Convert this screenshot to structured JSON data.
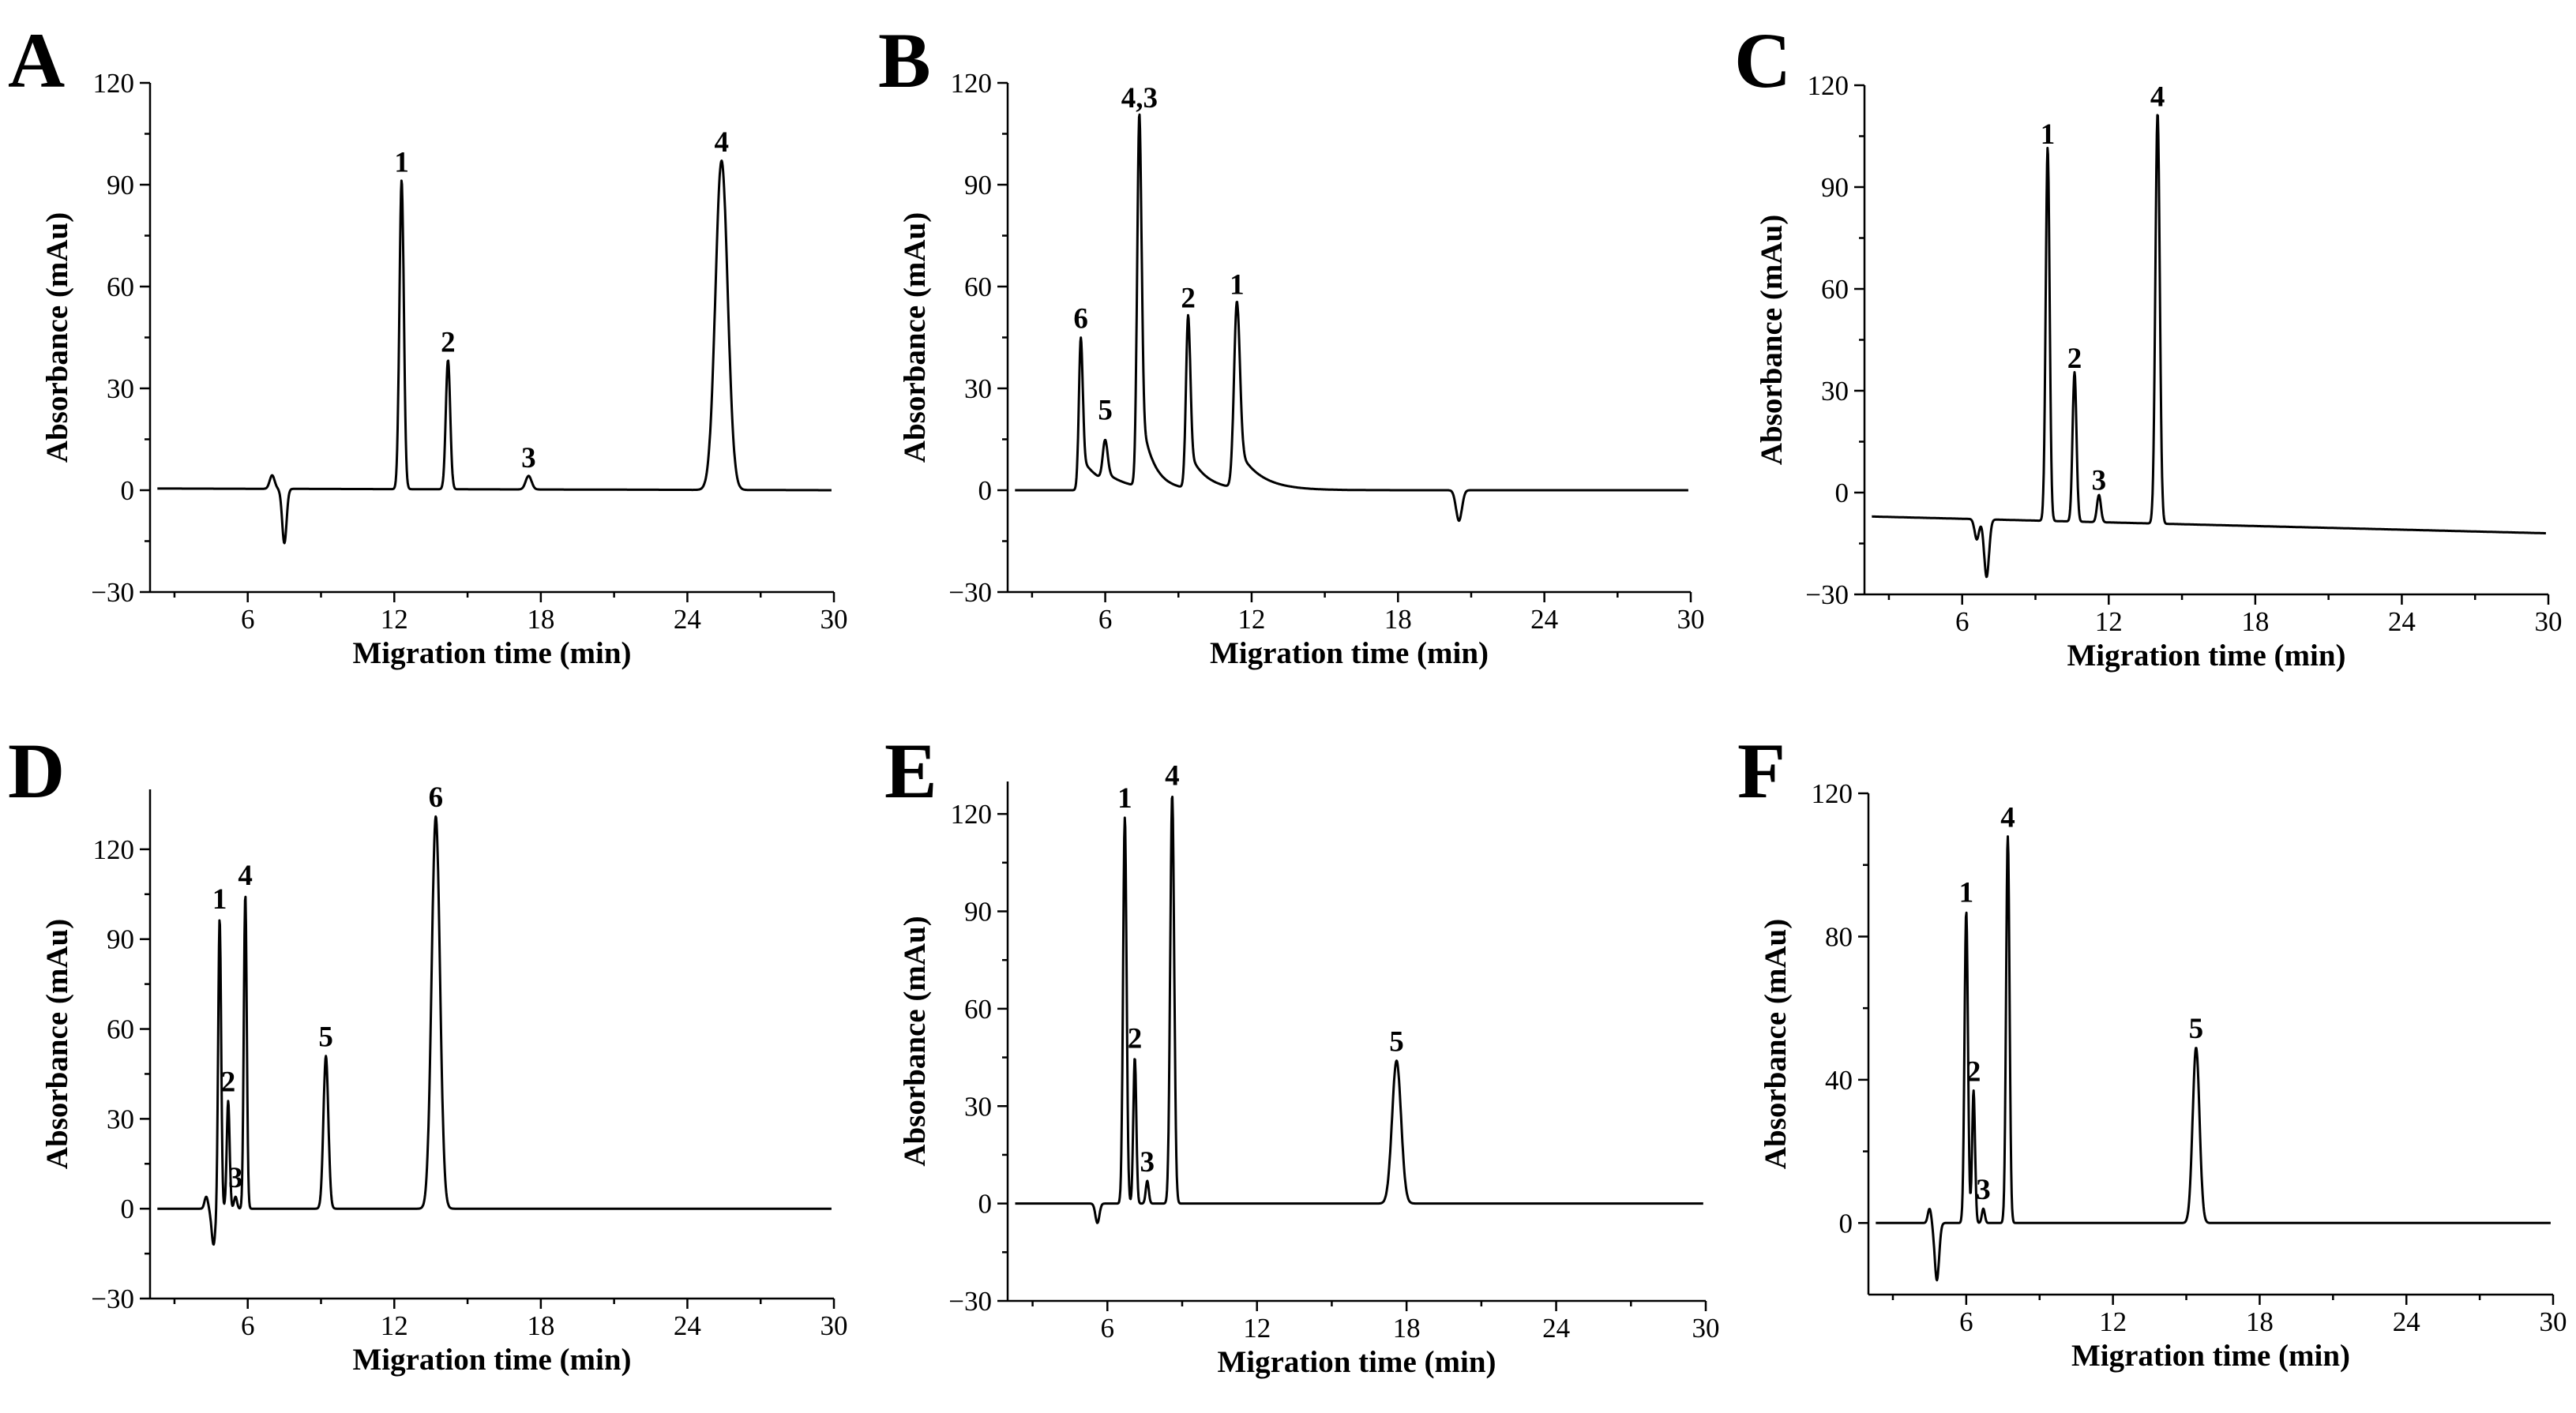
{
  "chart_data": [
    {
      "panel": "A",
      "type": "line",
      "xlabel": "Migration time (min)",
      "ylabel": "Absorbance (mAu)",
      "xlim": [
        2,
        30
      ],
      "ylim": [
        -30,
        120
      ],
      "xticks": [
        6,
        12,
        18,
        24,
        30
      ],
      "yticks": [
        -30,
        0,
        30,
        60,
        90,
        120
      ],
      "baseline": [
        0.5,
        0
      ],
      "features": [
        {
          "t": 7.0,
          "h": 4,
          "w": 0.1
        },
        {
          "t": 7.5,
          "h": -16,
          "w": 0.09
        },
        {
          "t": 12.3,
          "h": 91,
          "w": 0.09
        },
        {
          "t": 14.2,
          "h": 38,
          "w": 0.09
        },
        {
          "t": 17.5,
          "h": 4,
          "w": 0.12
        },
        {
          "t": 25.4,
          "h": 97,
          "w": 0.25
        }
      ],
      "peaks": [
        {
          "label": "1",
          "t": 12.3,
          "h": 91
        },
        {
          "label": "2",
          "t": 14.2,
          "h": 38
        },
        {
          "label": "3",
          "t": 17.5,
          "h": 4
        },
        {
          "label": "4",
          "t": 25.4,
          "h": 97
        }
      ]
    },
    {
      "panel": "B",
      "type": "line",
      "xlabel": "Migration time (min)",
      "ylabel": "Absorbance (mAu)",
      "xlim": [
        2,
        30
      ],
      "ylim": [
        -30,
        120
      ],
      "xticks": [
        6,
        12,
        18,
        24,
        30
      ],
      "yticks": [
        -30,
        0,
        30,
        60,
        90,
        120
      ],
      "baseline": [
        0,
        0
      ],
      "features": [
        {
          "t": 5.0,
          "h": 45,
          "w": 0.08,
          "tail": 0.8
        },
        {
          "t": 6.0,
          "h": 12,
          "w": 0.1,
          "tail": 1.0
        },
        {
          "t": 7.4,
          "h": 110,
          "w": 0.09,
          "tail": 0.5
        },
        {
          "t": 9.4,
          "h": 51,
          "w": 0.09,
          "tail": 0.7
        },
        {
          "t": 11.4,
          "h": 55,
          "w": 0.12,
          "tail": 0.9
        },
        {
          "t": 20.5,
          "h": -9,
          "w": 0.12
        }
      ],
      "peaks": [
        {
          "label": "6",
          "t": 5.0,
          "h": 45
        },
        {
          "label": "5",
          "t": 6.0,
          "h": 18
        },
        {
          "label": "4,3",
          "t": 7.4,
          "h": 110
        },
        {
          "label": "2",
          "t": 9.4,
          "h": 51
        },
        {
          "label": "1",
          "t": 11.4,
          "h": 55
        }
      ]
    },
    {
      "panel": "C",
      "type": "line",
      "xlabel": "Migration time (min)",
      "ylabel": "Absorbance (mAu)",
      "xlim": [
        2,
        30
      ],
      "ylim": [
        -30,
        120
      ],
      "xticks": [
        6,
        12,
        18,
        24,
        30
      ],
      "yticks": [
        -30,
        0,
        30,
        60,
        90,
        120
      ],
      "baseline": [
        -7,
        -12
      ],
      "features": [
        {
          "t": 6.6,
          "h": -6,
          "w": 0.09
        },
        {
          "t": 7.0,
          "h": -17,
          "w": 0.1
        },
        {
          "t": 9.5,
          "h": 110,
          "w": 0.08
        },
        {
          "t": 10.6,
          "h": 44,
          "w": 0.08
        },
        {
          "t": 11.6,
          "h": 8,
          "w": 0.08
        },
        {
          "t": 14.0,
          "h": 121,
          "w": 0.09
        }
      ],
      "peaks": [
        {
          "label": "1",
          "t": 9.5,
          "h": 100
        },
        {
          "label": "2",
          "t": 10.6,
          "h": 34
        },
        {
          "label": "3",
          "t": 11.6,
          "h": -2
        },
        {
          "label": "4",
          "t": 14.0,
          "h": 111
        }
      ]
    },
    {
      "panel": "D",
      "type": "line",
      "xlabel": "Migration time (min)",
      "ylabel": "Absorbance (mAu)",
      "xlim": [
        2,
        30
      ],
      "ylim": [
        -30,
        140
      ],
      "xticks": [
        6,
        12,
        18,
        24,
        30
      ],
      "yticks": [
        -30,
        0,
        30,
        60,
        90,
        120
      ],
      "baseline": [
        0,
        0
      ],
      "features": [
        {
          "t": 4.3,
          "h": 4,
          "w": 0.07
        },
        {
          "t": 4.6,
          "h": -12,
          "w": 0.08
        },
        {
          "t": 4.85,
          "h": 97,
          "w": 0.06
        },
        {
          "t": 5.2,
          "h": 36,
          "w": 0.06
        },
        {
          "t": 5.5,
          "h": 4,
          "w": 0.06
        },
        {
          "t": 5.9,
          "h": 105,
          "w": 0.06
        },
        {
          "t": 9.2,
          "h": 51,
          "w": 0.1
        },
        {
          "t": 13.7,
          "h": 131,
          "w": 0.17
        }
      ],
      "peaks": [
        {
          "label": "1",
          "t": 4.85,
          "h": 97
        },
        {
          "label": "2",
          "t": 5.2,
          "h": 36
        },
        {
          "label": "3",
          "t": 5.5,
          "h": 4
        },
        {
          "label": "4",
          "t": 5.9,
          "h": 105
        },
        {
          "label": "5",
          "t": 9.2,
          "h": 51
        },
        {
          "label": "6",
          "t": 13.7,
          "h": 131
        }
      ]
    },
    {
      "panel": "E",
      "type": "line",
      "xlabel": "Migration time (min)",
      "ylabel": "Absorbance (mAu)",
      "xlim": [
        2,
        30
      ],
      "ylim": [
        -30,
        130
      ],
      "xticks": [
        6,
        12,
        18,
        24,
        30
      ],
      "yticks": [
        -30,
        0,
        30,
        60,
        90,
        120
      ],
      "baseline": [
        0,
        0
      ],
      "features": [
        {
          "t": 5.6,
          "h": -6,
          "w": 0.08
        },
        {
          "t": 6.7,
          "h": 119,
          "w": 0.07
        },
        {
          "t": 7.1,
          "h": 45,
          "w": 0.06
        },
        {
          "t": 7.6,
          "h": 7,
          "w": 0.06
        },
        {
          "t": 8.6,
          "h": 126,
          "w": 0.08
        },
        {
          "t": 17.6,
          "h": 44,
          "w": 0.18
        }
      ],
      "peaks": [
        {
          "label": "1",
          "t": 6.7,
          "h": 119
        },
        {
          "label": "2",
          "t": 7.1,
          "h": 45
        },
        {
          "label": "3",
          "t": 7.6,
          "h": 7
        },
        {
          "label": "4",
          "t": 8.6,
          "h": 126
        },
        {
          "label": "5",
          "t": 17.6,
          "h": 44
        }
      ]
    },
    {
      "panel": "F",
      "type": "line",
      "xlabel": "Migration time (min)",
      "ylabel": "Absorbance (mAu)",
      "xlim": [
        2,
        30
      ],
      "ylim": [
        -20,
        120
      ],
      "xticks": [
        6,
        12,
        18,
        24,
        30
      ],
      "yticks": [
        0,
        40,
        80,
        120
      ],
      "baseline": [
        0,
        0
      ],
      "features": [
        {
          "t": 4.5,
          "h": 4,
          "w": 0.07
        },
        {
          "t": 4.8,
          "h": -16,
          "w": 0.09
        },
        {
          "t": 6.0,
          "h": 87,
          "w": 0.07
        },
        {
          "t": 6.3,
          "h": 37,
          "w": 0.06
        },
        {
          "t": 6.7,
          "h": 4,
          "w": 0.06
        },
        {
          "t": 7.7,
          "h": 108,
          "w": 0.07
        },
        {
          "t": 15.4,
          "h": 49,
          "w": 0.14
        }
      ],
      "peaks": [
        {
          "label": "1",
          "t": 6.0,
          "h": 87
        },
        {
          "label": "2",
          "t": 6.3,
          "h": 37
        },
        {
          "label": "3",
          "t": 6.7,
          "h": 4
        },
        {
          "label": "4",
          "t": 7.7,
          "h": 108
        },
        {
          "label": "5",
          "t": 15.4,
          "h": 49
        }
      ]
    }
  ]
}
